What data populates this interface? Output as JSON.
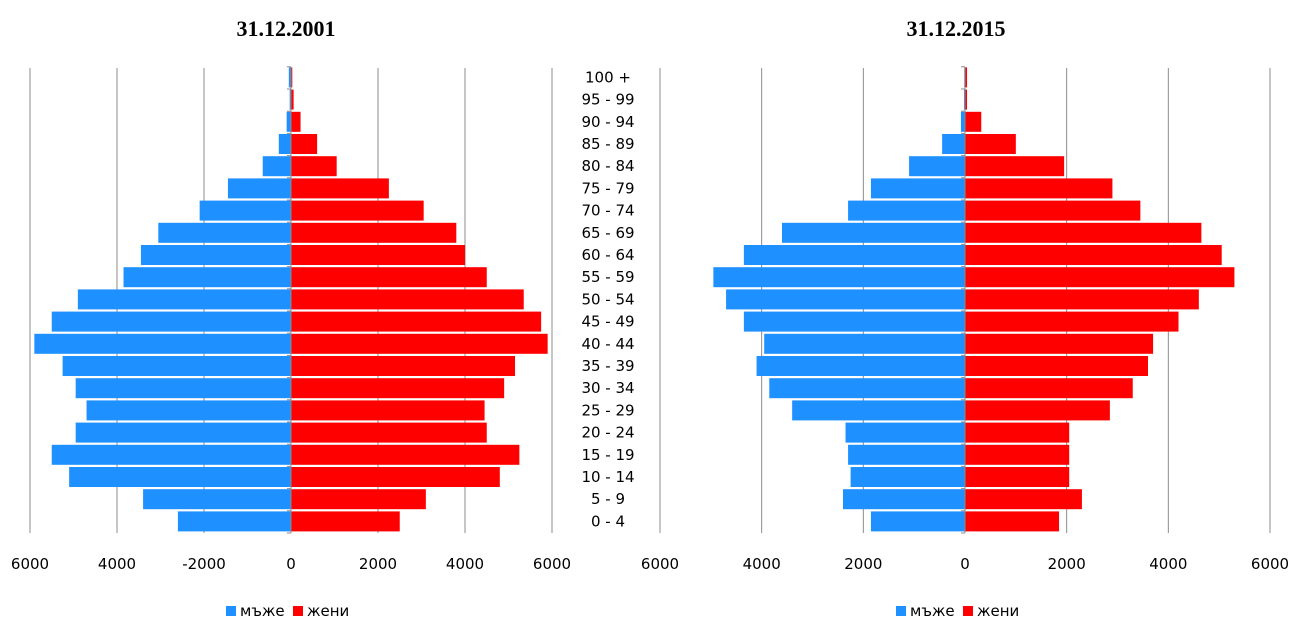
{
  "colors": {
    "men": "#1e90ff",
    "women": "#ff0000",
    "grid": "#8c8c8c",
    "axis": "#8c8c8c"
  },
  "chart_data": [
    {
      "type": "bar",
      "orientation": "horizontal-population-pyramid",
      "title": "31.12.2001",
      "categories": [
        "0 - 4",
        "5 - 9",
        "10 - 14",
        "15 - 19",
        "20 - 24",
        "25 - 29",
        "30 - 34",
        "35 - 39",
        "40 - 44",
        "45 - 49",
        "50 - 54",
        "55 - 59",
        "60 - 64",
        "65 - 69",
        "70 - 74",
        "75 - 79",
        "80 - 84",
        "85 - 89",
        "90 - 94",
        "95 - 99",
        "100 +"
      ],
      "series": [
        {
          "name": "мъже",
          "values": [
            -2600,
            -3400,
            -5100,
            -5500,
            -4950,
            -4700,
            -4950,
            -5250,
            -5900,
            -5500,
            -4900,
            -3850,
            -3450,
            -3050,
            -2100,
            -1450,
            -650,
            -280,
            -100,
            -30,
            -50
          ]
        },
        {
          "name": "жени",
          "values": [
            2500,
            3100,
            4800,
            5250,
            4500,
            4450,
            4900,
            5150,
            5900,
            5750,
            5350,
            4500,
            4000,
            3800,
            3050,
            2250,
            1050,
            600,
            220,
            60,
            30
          ]
        }
      ],
      "xlim": [
        -6000,
        6000
      ],
      "xticks": [
        -6000,
        -4000,
        -2000,
        0,
        2000,
        4000,
        6000
      ],
      "xtick_labels": [
        "6000",
        "4000",
        "-2000",
        "0",
        "2000",
        "4000",
        "6000"
      ],
      "grid": true,
      "legend": [
        "мъже",
        "жени"
      ],
      "legend_position": "bottom"
    },
    {
      "type": "bar",
      "orientation": "horizontal-population-pyramid",
      "title": "31.12.2015",
      "categories": [
        "0 - 4",
        "5 - 9",
        "10 - 14",
        "15 - 19",
        "20 - 24",
        "25 - 29",
        "30 - 34",
        "35 - 39",
        "40 - 44",
        "45 - 49",
        "50 - 54",
        "55 - 59",
        "60 - 64",
        "65 - 69",
        "70 - 74",
        "75 - 79",
        "80 - 84",
        "85 - 89",
        "90 - 94",
        "95 - 99",
        "100 +"
      ],
      "series": [
        {
          "name": "мъже",
          "values": [
            -1850,
            -2400,
            -2250,
            -2300,
            -2350,
            -3400,
            -3850,
            -4100,
            -3950,
            -4350,
            -4700,
            -4950,
            -4350,
            -3600,
            -2300,
            -1850,
            -1100,
            -450,
            -80,
            -20,
            -15
          ]
        },
        {
          "name": "жени",
          "values": [
            1850,
            2300,
            2050,
            2050,
            2050,
            2850,
            3300,
            3600,
            3700,
            4200,
            4600,
            5300,
            5050,
            4650,
            3450,
            2900,
            1950,
            1000,
            320,
            40,
            40
          ]
        }
      ],
      "xlim": [
        -6000,
        6000
      ],
      "xticks": [
        -6000,
        -4000,
        -2000,
        0,
        2000,
        4000,
        6000
      ],
      "xtick_labels": [
        "6000",
        "4000",
        "2000",
        "0",
        "2000",
        "4000",
        "6000"
      ],
      "grid": true,
      "legend": [
        "мъже",
        "жени"
      ],
      "legend_position": "bottom"
    }
  ]
}
